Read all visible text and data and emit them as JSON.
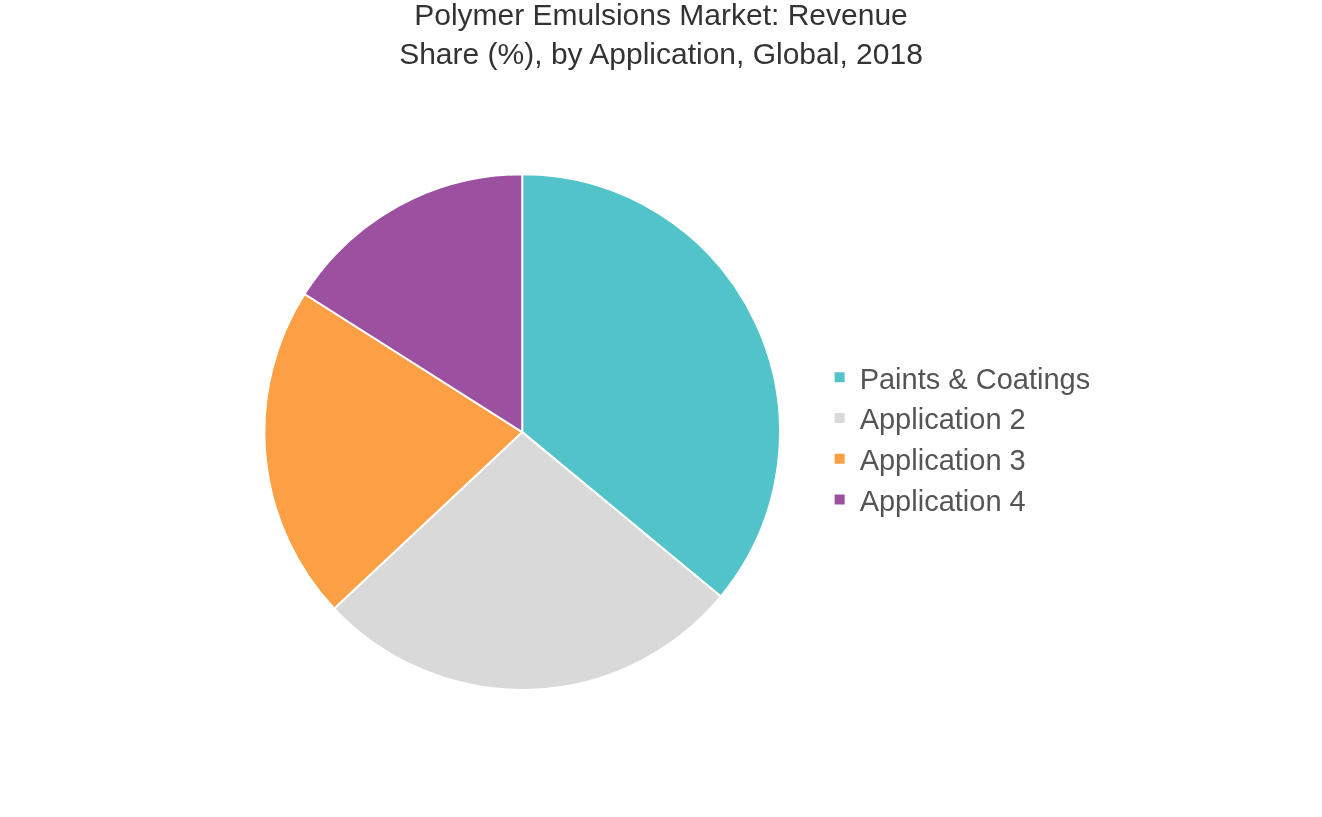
{
  "chart_data": {
    "type": "pie",
    "title": "Polymer Emulsions Market: Revenue Share (%), by Application, Global, 2018",
    "categories": [
      "Paints & Coatings",
      "Application 2",
      "Application 3",
      "Application 4"
    ],
    "values": [
      36,
      27,
      21,
      16
    ],
    "colors": [
      "#52c4c9",
      "#d9d9d9",
      "#fd9f45",
      "#9b51a0"
    ],
    "legend": "right"
  }
}
